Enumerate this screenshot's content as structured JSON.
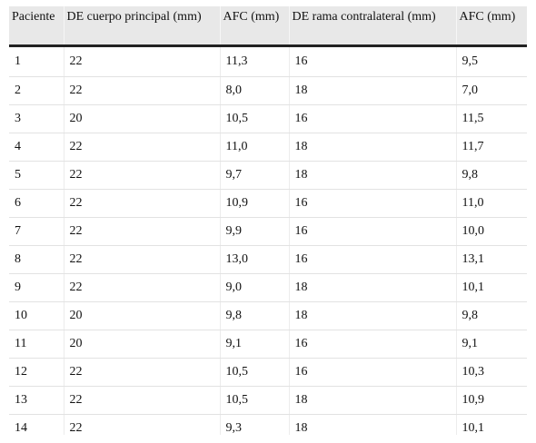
{
  "table": {
    "headers": [
      "Paciente",
      "DE cuerpo principal (mm)",
      "AFC (mm)",
      "DE rama contralateral (mm)",
      "AFC (mm)"
    ],
    "rows": [
      [
        "1",
        "22",
        "11,3",
        "16",
        "9,5"
      ],
      [
        "2",
        "22",
        "8,0",
        "18",
        "7,0"
      ],
      [
        "3",
        "20",
        "10,5",
        "16",
        "11,5"
      ],
      [
        "4",
        "22",
        "11,0",
        "18",
        "11,7"
      ],
      [
        "5",
        "22",
        "9,7",
        "18",
        "9,8"
      ],
      [
        "6",
        "22",
        "10,9",
        "16",
        "11,0"
      ],
      [
        "7",
        "22",
        "9,9",
        "16",
        "10,0"
      ],
      [
        "8",
        "22",
        "13,0",
        "16",
        "13,1"
      ],
      [
        "9",
        "22",
        "9,0",
        "18",
        "10,1"
      ],
      [
        "10",
        "20",
        "9,8",
        "18",
        "9,8"
      ],
      [
        "11",
        "20",
        "9,1",
        "16",
        "9,1"
      ],
      [
        "12",
        "22",
        "10,5",
        "16",
        "10,3"
      ],
      [
        "13",
        "22",
        "10,5",
        "18",
        "10,9"
      ],
      [
        "14",
        "22",
        "9,3",
        "18",
        "10,1"
      ]
    ]
  }
}
